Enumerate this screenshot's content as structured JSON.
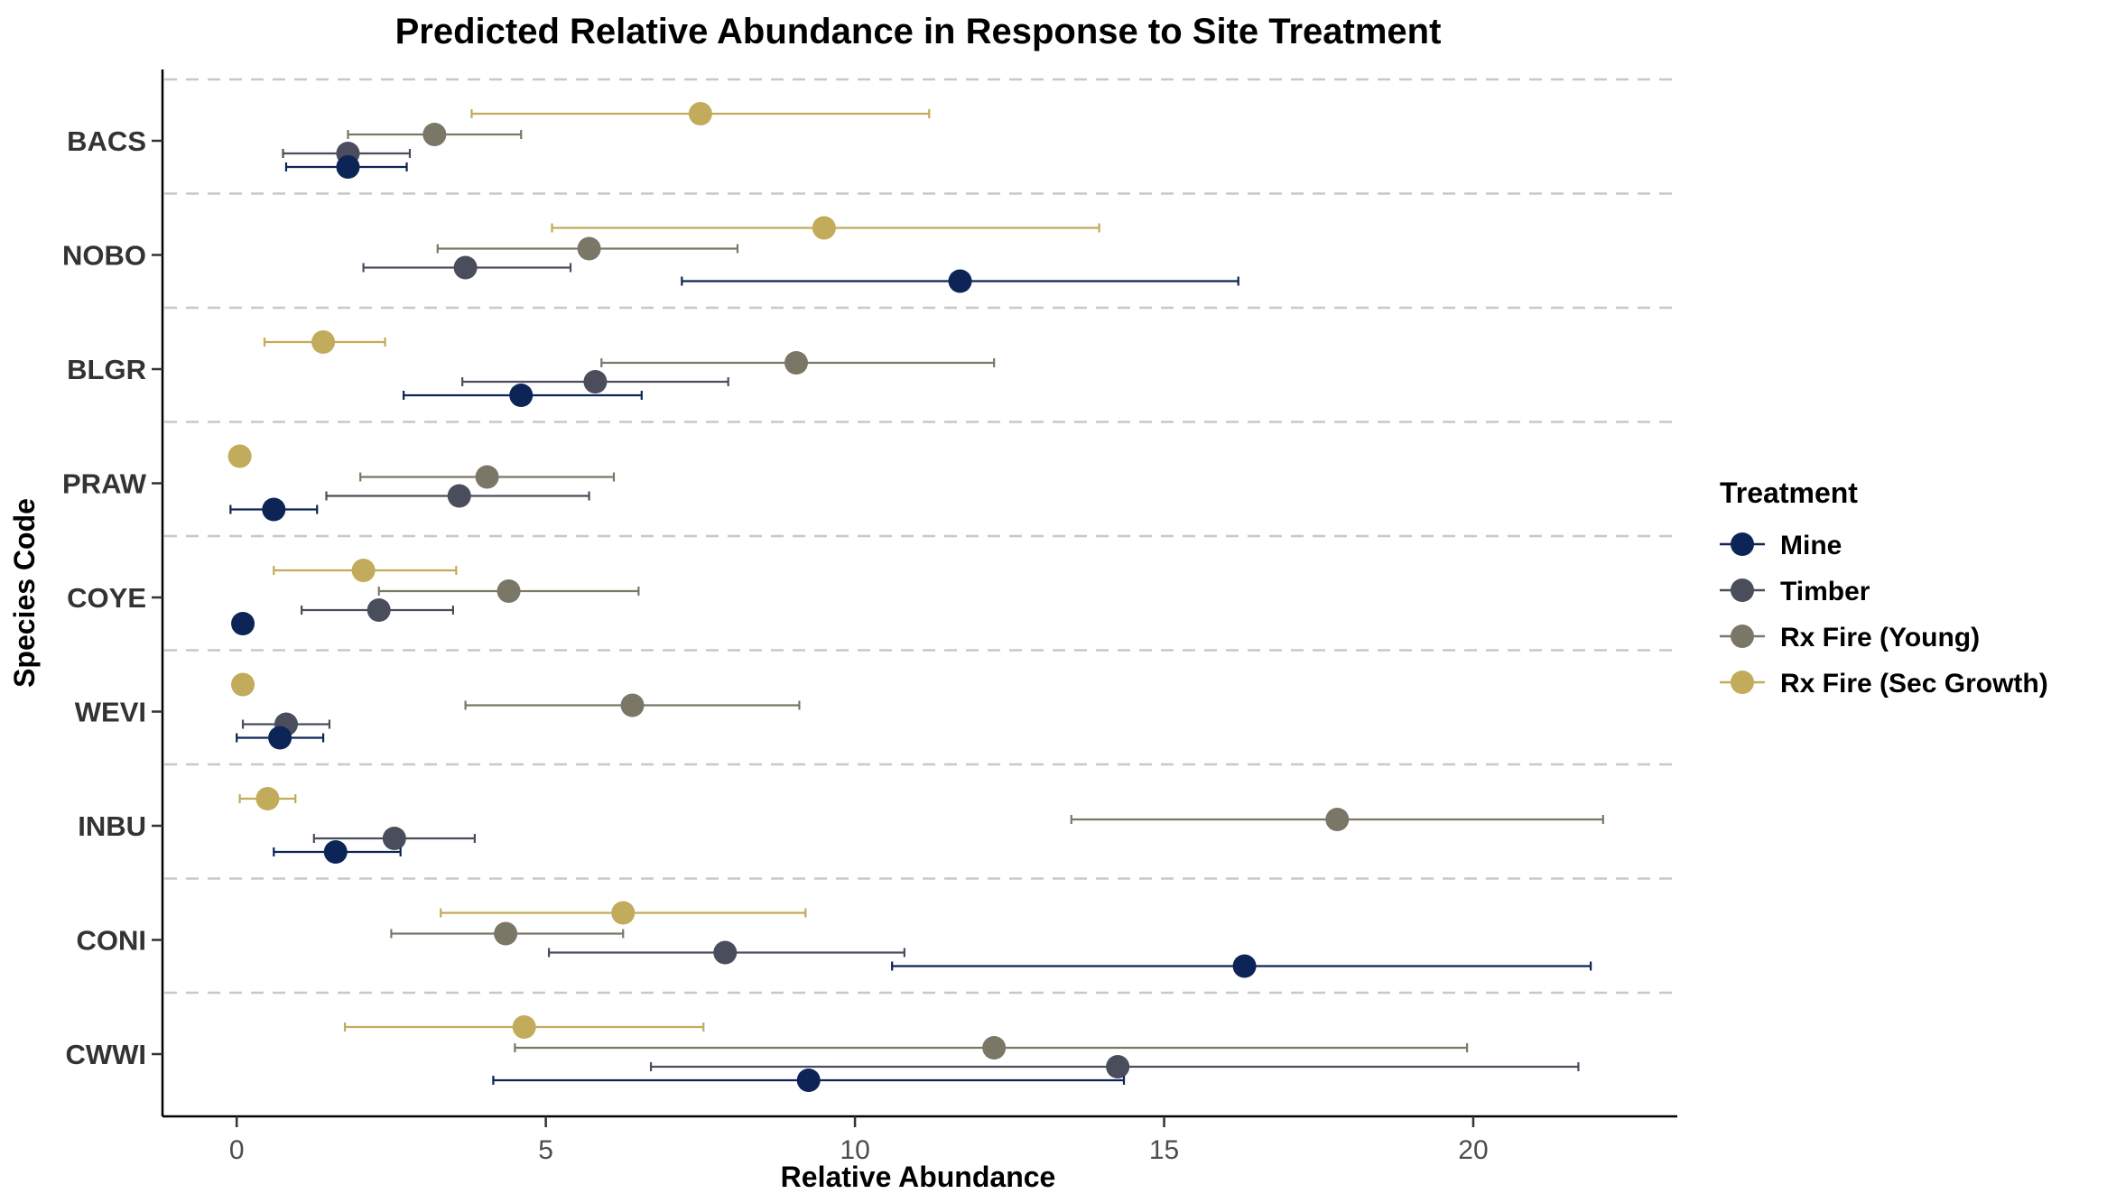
{
  "chart_data": {
    "type": "scatter",
    "title": "Predicted Relative Abundance in Response to Site Treatment",
    "xlabel": "Relative Abundance",
    "ylabel": "Species Code",
    "xlim": [
      -1.2,
      23.3
    ],
    "xticks": [
      0,
      5,
      10,
      15,
      20
    ],
    "categories": [
      "BACS",
      "NOBO",
      "BLGR",
      "PRAW",
      "COYE",
      "WEVI",
      "INBU",
      "CONI",
      "CWWI"
    ],
    "grid": "dashed horizontal separators between species",
    "legend": {
      "title": "Treatment",
      "position": "right"
    },
    "series": [
      {
        "name": "Mine",
        "color": "#0d2456",
        "values": [
          1.8,
          11.7,
          4.6,
          0.6,
          0.1,
          0.7,
          1.6,
          16.3,
          9.25
        ],
        "lower": [
          0.8,
          7.2,
          2.7,
          -0.1,
          null,
          0.0,
          0.6,
          10.6,
          4.15
        ],
        "upper": [
          2.75,
          16.2,
          6.55,
          1.3,
          null,
          1.4,
          2.65,
          21.9,
          14.35
        ]
      },
      {
        "name": "Timber",
        "color": "#4a4d5c",
        "values": [
          1.8,
          3.7,
          5.8,
          3.6,
          2.3,
          0.8,
          2.55,
          7.9,
          14.25
        ],
        "lower": [
          0.75,
          2.05,
          3.65,
          1.45,
          1.05,
          0.1,
          1.25,
          5.05,
          6.7
        ],
        "upper": [
          2.8,
          5.4,
          7.95,
          5.7,
          3.5,
          1.5,
          3.85,
          10.8,
          21.7
        ]
      },
      {
        "name": "Rx Fire (Young)",
        "color": "#7b7767",
        "values": [
          3.2,
          5.7,
          9.05,
          4.05,
          4.4,
          6.4,
          17.8,
          4.35,
          12.25
        ],
        "lower": [
          1.8,
          3.25,
          5.9,
          2.0,
          2.3,
          3.7,
          13.5,
          2.5,
          4.5
        ],
        "upper": [
          4.6,
          8.1,
          12.25,
          6.1,
          6.5,
          9.1,
          22.1,
          6.25,
          19.9
        ]
      },
      {
        "name": "Rx Fire (Sec Growth)",
        "color": "#c2ab5a",
        "values": [
          7.5,
          9.5,
          1.4,
          0.05,
          2.05,
          0.1,
          0.5,
          6.25,
          4.65
        ],
        "lower": [
          3.8,
          5.1,
          0.45,
          null,
          0.6,
          null,
          0.05,
          3.3,
          1.75
        ],
        "upper": [
          11.2,
          13.95,
          2.4,
          null,
          3.55,
          null,
          0.95,
          9.2,
          7.55
        ]
      }
    ]
  }
}
